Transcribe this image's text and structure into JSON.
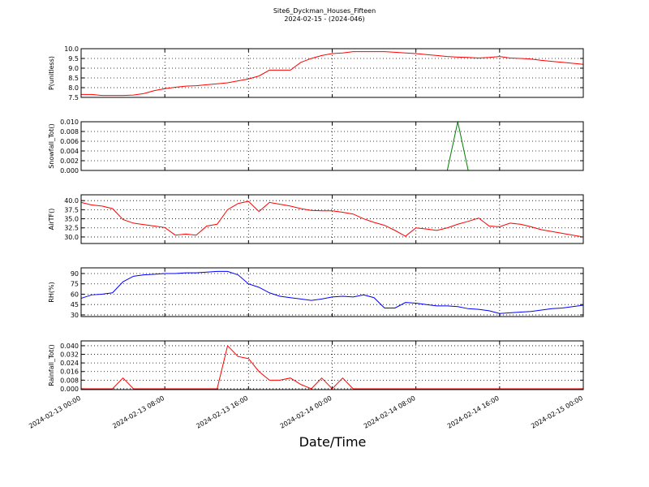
{
  "chart_data": {
    "type": "line",
    "title": "Site6_Dyckman_Houses_Fifteen",
    "subtitle": "2024-02-15 - (2024-046)",
    "xlabel": "Date/Time",
    "grid": true,
    "x": [
      "2024-02-13 00:00",
      "2024-02-13 01:00",
      "2024-02-13 02:00",
      "2024-02-13 03:00",
      "2024-02-13 04:00",
      "2024-02-13 05:00",
      "2024-02-13 06:00",
      "2024-02-13 07:00",
      "2024-02-13 08:00",
      "2024-02-13 09:00",
      "2024-02-13 10:00",
      "2024-02-13 11:00",
      "2024-02-13 12:00",
      "2024-02-13 13:00",
      "2024-02-13 14:00",
      "2024-02-13 15:00",
      "2024-02-13 16:00",
      "2024-02-13 17:00",
      "2024-02-13 18:00",
      "2024-02-13 19:00",
      "2024-02-13 20:00",
      "2024-02-13 21:00",
      "2024-02-13 22:00",
      "2024-02-13 23:00",
      "2024-02-14 00:00",
      "2024-02-14 01:00",
      "2024-02-14 02:00",
      "2024-02-14 03:00",
      "2024-02-14 04:00",
      "2024-02-14 05:00",
      "2024-02-14 06:00",
      "2024-02-14 07:00",
      "2024-02-14 08:00",
      "2024-02-14 09:00",
      "2024-02-14 10:00",
      "2024-02-14 11:00",
      "2024-02-14 12:00",
      "2024-02-14 13:00",
      "2024-02-14 14:00",
      "2024-02-14 15:00",
      "2024-02-14 16:00",
      "2024-02-14 17:00",
      "2024-02-14 18:00",
      "2024-02-14 19:00",
      "2024-02-14 20:00",
      "2024-02-14 21:00",
      "2024-02-14 22:00",
      "2024-02-14 23:00",
      "2024-02-15 00:00"
    ],
    "xlim": [
      "2024-02-13 00:00",
      "2024-02-15 00:00"
    ],
    "xticks": [
      "2024-02-13 00:00",
      "2024-02-13 08:00",
      "2024-02-13 16:00",
      "2024-02-14 00:00",
      "2024-02-14 08:00",
      "2024-02-14 16:00",
      "2024-02-15 00:00"
    ],
    "panels": [
      {
        "ylabel": "P(unitless)",
        "ylim": [
          7.5,
          10.0
        ],
        "yticks": [
          {
            "value": 7.5,
            "label": "7.5"
          },
          {
            "value": 8.0,
            "label": "8.0"
          },
          {
            "value": 8.5,
            "label": "8.5"
          },
          {
            "value": 9.0,
            "label": "9.0"
          },
          {
            "value": 9.5,
            "label": "9.5"
          },
          {
            "value": 10.0,
            "label": "10.0"
          }
        ],
        "series": [
          {
            "color": "#ff0000",
            "values": [
              7.65,
              7.65,
              7.6,
              7.6,
              7.6,
              7.62,
              7.7,
              7.85,
              7.95,
              8.02,
              8.08,
              8.1,
              8.15,
              8.2,
              8.25,
              8.35,
              8.45,
              8.6,
              8.9,
              8.9,
              8.9,
              9.3,
              9.5,
              9.65,
              9.75,
              9.78,
              9.85,
              9.85,
              9.85,
              9.85,
              9.82,
              9.78,
              9.75,
              9.7,
              9.65,
              9.6,
              9.57,
              9.55,
              9.52,
              9.55,
              9.6,
              9.52,
              9.5,
              9.47,
              9.4,
              9.35,
              9.3,
              9.25,
              9.2
            ]
          }
        ]
      },
      {
        "ylabel": "Snowfall_Tot()",
        "ylim": [
          0,
          0.01
        ],
        "yticks": [
          {
            "value": 0,
            "label": "0.000"
          },
          {
            "value": 0.002,
            "label": "0.002"
          },
          {
            "value": 0.004,
            "label": "0.004"
          },
          {
            "value": 0.006,
            "label": "0.006"
          },
          {
            "value": 0.008,
            "label": "0.008"
          },
          {
            "value": 0.01,
            "label": "0.010"
          }
        ],
        "series": [
          {
            "color": "#008000",
            "values": [
              0,
              0,
              0,
              0,
              0,
              0,
              0,
              0,
              0,
              0,
              0,
              0,
              0,
              0,
              0,
              0,
              0,
              0,
              0,
              0,
              0,
              0,
              0,
              0,
              0,
              0,
              0,
              0,
              0,
              0,
              0,
              0,
              0,
              0,
              0,
              0,
              0.01,
              0,
              0,
              0,
              0,
              0,
              0,
              0,
              0,
              0,
              0,
              0,
              0
            ]
          }
        ]
      },
      {
        "ylabel": "AirTF()",
        "ylim": [
          28.2,
          41.6
        ],
        "yticks": [
          {
            "value": 30,
            "label": "30.0"
          },
          32.5,
          {
            "value": 35,
            "label": "35.0"
          },
          37.5,
          {
            "value": 40,
            "label": "40.0"
          }
        ],
        "series": [
          {
            "color": "#ff0000",
            "values": [
              39.5,
              38.8,
              38.5,
              37.8,
              34.8,
              33.8,
              33.4,
              33.0,
              32.6,
              30.5,
              30.8,
              30.5,
              33.0,
              33.5,
              37.5,
              39.2,
              39.8,
              37.0,
              39.5,
              39.0,
              38.5,
              37.8,
              37.3,
              37.2,
              37.2,
              36.8,
              36.3,
              35.0,
              34.0,
              33.2,
              31.8,
              30.2,
              32.5,
              32.2,
              31.8,
              32.5,
              33.5,
              34.3,
              35.2,
              33.0,
              32.8,
              33.8,
              33.5,
              32.8,
              32.0,
              31.5,
              31.0,
              30.5,
              30.0
            ]
          }
        ]
      },
      {
        "ylabel": "RH(%)",
        "ylim": [
          27.6,
          98.2
        ],
        "yticks": [
          30,
          45,
          60,
          75,
          90
        ],
        "series": [
          {
            "color": "#0000ff",
            "values": [
              54,
              59,
              60,
              62,
              78,
              86,
              88,
              89,
              90,
              90,
              91,
              91,
              92,
              93,
              93,
              88,
              75,
              70,
              62,
              57,
              55,
              53,
              51,
              53,
              56,
              57,
              56,
              59,
              55,
              40,
              40,
              48,
              47,
              45,
              43,
              43,
              42,
              39,
              38,
              36,
              32,
              33,
              34,
              35,
              37,
              39,
              40,
              42,
              44
            ]
          }
        ]
      },
      {
        "ylabel": "Rainfall_Tot()",
        "ylim": [
          -0.0008,
          0.0445
        ],
        "yticks": [
          {
            "value": 0,
            "label": "0.000"
          },
          {
            "value": 0.008,
            "label": "0.008"
          },
          {
            "value": 0.016,
            "label": "0.016"
          },
          {
            "value": 0.024,
            "label": "0.024"
          },
          {
            "value": 0.032,
            "label": "0.032"
          },
          {
            "value": 0.04,
            "label": "0.040"
          }
        ],
        "series": [
          {
            "color": "#ff0000",
            "values": [
              0,
              0,
              0,
              0,
              0.01,
              0,
              0,
              0,
              0,
              0,
              0,
              0,
              0,
              0,
              0.04,
              0.03,
              0.028,
              0.016,
              0.008,
              0.008,
              0.01,
              0.004,
              0,
              0.01,
              0,
              0.01,
              0,
              0,
              0,
              0,
              0,
              0,
              0,
              0,
              0,
              0,
              0,
              0,
              0,
              0,
              0,
              0,
              0,
              0,
              0,
              0,
              0,
              0,
              0
            ]
          }
        ]
      }
    ]
  }
}
